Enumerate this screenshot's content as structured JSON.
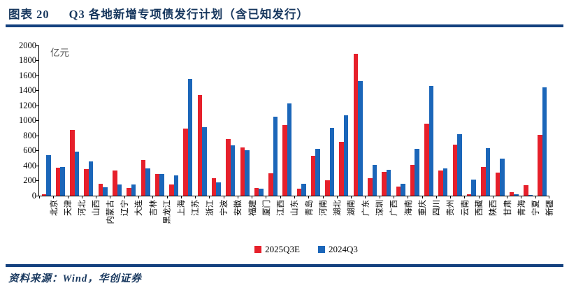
{
  "header": {
    "figure_label": "图表 20",
    "title": "Q3 各地新增专项债发行计划（含已知发行）"
  },
  "footer": {
    "source": "资料来源：Wind，华创证券"
  },
  "colors": {
    "title_navy": "#17375e",
    "rule_blue": "#14417f",
    "series_red": "#e6202b",
    "series_blue": "#1b66b9"
  },
  "chart_data": {
    "type": "bar",
    "title": "Q3 各地新增专项债发行计划（含已知发行）",
    "unit_label": "亿元",
    "ylabel": "亿元",
    "ylim": [
      0,
      2000
    ],
    "ytick_step": 200,
    "grid": false,
    "legend_position": "bottom-center",
    "categories": [
      "北京",
      "天津",
      "河北",
      "山西",
      "内蒙古",
      "辽宁",
      "大连",
      "吉林",
      "黑龙江",
      "上海",
      "江苏",
      "浙江",
      "宁波",
      "安徽",
      "福建",
      "厦门",
      "江西",
      "山东",
      "青岛",
      "河南",
      "湖北",
      "湖南",
      "广东",
      "深圳",
      "广西",
      "海南",
      "重庆",
      "四川",
      "贵州",
      "云南",
      "西藏",
      "陕西",
      "甘肃",
      "青海",
      "宁夏",
      "新疆"
    ],
    "series": [
      {
        "name": "2025Q3E",
        "color": "#e6202b",
        "values": [
          15,
          370,
          875,
          355,
          160,
          335,
          100,
          475,
          285,
          150,
          895,
          1340,
          235,
          750,
          645,
          105,
          300,
          935,
          90,
          530,
          205,
          720,
          1890,
          235,
          315,
          120,
          410,
          955,
          335,
          675,
          15,
          380,
          310,
          45,
          140,
          805
        ]
      },
      {
        "name": "2024Q3",
        "color": "#1b66b9",
        "values": [
          535,
          385,
          590,
          460,
          115,
          150,
          145,
          360,
          290,
          270,
          1555,
          915,
          175,
          670,
          600,
          90,
          1055,
          1225,
          155,
          625,
          905,
          1070,
          1525,
          410,
          345,
          160,
          625,
          1460,
          365,
          820,
          210,
          630,
          490,
          20,
          10,
          1440
        ]
      }
    ]
  }
}
